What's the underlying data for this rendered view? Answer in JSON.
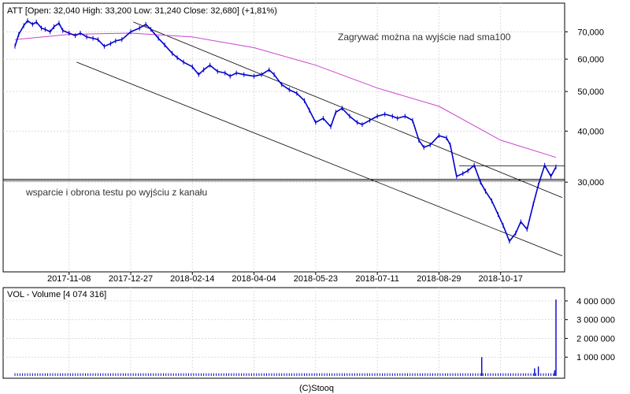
{
  "chart_data": [
    {
      "type": "line",
      "ticker": "ATT",
      "header": {
        "ticker": "ATT",
        "open": "32,040",
        "high": "33,200",
        "low": "31,240",
        "close": "32,680",
        "change": "(+1,81%)"
      },
      "title_text": "ATT [Open: 32,040  High: 33,200  Low: 31,240  Close: 32,680]  (+1,81%)",
      "scale": "log",
      "ylim": [
        19,
        78
      ],
      "yticks": [
        30000,
        40000,
        50000,
        60000,
        70000
      ],
      "ytick_labels": [
        "30,000",
        "40,000",
        "50,000",
        "60,000",
        "70,000"
      ],
      "xtick_labels": [
        "2017-11-08",
        "2017-12-27",
        "2018-02-14",
        "2018-04-04",
        "2018-05-23",
        "2018-07-11",
        "2018-08-29",
        "2018-10-17"
      ],
      "series": [
        {
          "kind": "price",
          "color": "#0000cc",
          "points": [
            [
              "2017-09-26",
              64.5
            ],
            [
              "2017-09-29",
              69.0
            ],
            [
              "2017-10-03",
              72.5
            ],
            [
              "2017-10-06",
              74.5
            ],
            [
              "2017-10-10",
              73.0
            ],
            [
              "2017-10-13",
              74.0
            ],
            [
              "2017-10-17",
              71.5
            ],
            [
              "2017-10-20",
              71.0
            ],
            [
              "2017-10-24",
              70.0
            ],
            [
              "2017-10-27",
              72.0
            ],
            [
              "2017-10-31",
              73.5
            ],
            [
              "2017-11-03",
              70.5
            ],
            [
              "2017-11-08",
              69.5
            ],
            [
              "2017-11-13",
              68.5
            ],
            [
              "2017-11-17",
              69.5
            ],
            [
              "2017-11-22",
              68.0
            ],
            [
              "2017-11-27",
              67.5
            ],
            [
              "2017-12-01",
              67.0
            ],
            [
              "2017-12-06",
              64.5
            ],
            [
              "2017-12-11",
              65.5
            ],
            [
              "2017-12-15",
              66.5
            ],
            [
              "2017-12-20",
              67.0
            ],
            [
              "2017-12-27",
              70.0
            ],
            [
              "2018-01-03",
              71.5
            ],
            [
              "2018-01-08",
              73.0
            ],
            [
              "2018-01-12",
              71.0
            ],
            [
              "2018-01-18",
              67.5
            ],
            [
              "2018-01-23",
              65.0
            ],
            [
              "2018-01-29",
              62.0
            ],
            [
              "2018-02-02",
              60.5
            ],
            [
              "2018-02-07",
              59.0
            ],
            [
              "2018-02-14",
              57.5
            ],
            [
              "2018-02-19",
              55.0
            ],
            [
              "2018-02-23",
              56.5
            ],
            [
              "2018-02-28",
              58.0
            ],
            [
              "2018-03-06",
              56.0
            ],
            [
              "2018-03-12",
              55.5
            ],
            [
              "2018-03-16",
              54.5
            ],
            [
              "2018-03-21",
              55.5
            ],
            [
              "2018-03-27",
              55.0
            ],
            [
              "2018-04-04",
              54.5
            ],
            [
              "2018-04-10",
              55.0
            ],
            [
              "2018-04-16",
              56.5
            ],
            [
              "2018-04-20",
              55.0
            ],
            [
              "2018-04-26",
              52.0
            ],
            [
              "2018-05-02",
              50.5
            ],
            [
              "2018-05-08",
              49.5
            ],
            [
              "2018-05-14",
              47.5
            ],
            [
              "2018-05-18",
              45.0
            ],
            [
              "2018-05-23",
              42.0
            ],
            [
              "2018-05-29",
              43.0
            ],
            [
              "2018-06-04",
              41.0
            ],
            [
              "2018-06-08",
              44.5
            ],
            [
              "2018-06-13",
              45.5
            ],
            [
              "2018-06-19",
              43.5
            ],
            [
              "2018-06-25",
              42.0
            ],
            [
              "2018-06-29",
              41.5
            ],
            [
              "2018-07-05",
              42.5
            ],
            [
              "2018-07-11",
              43.5
            ],
            [
              "2018-07-17",
              44.0
            ],
            [
              "2018-07-23",
              43.5
            ],
            [
              "2018-07-27",
              43.0
            ],
            [
              "2018-08-02",
              43.5
            ],
            [
              "2018-08-08",
              42.5
            ],
            [
              "2018-08-13",
              38.0
            ],
            [
              "2018-08-17",
              36.5
            ],
            [
              "2018-08-22",
              37.0
            ],
            [
              "2018-08-29",
              39.0
            ],
            [
              "2018-09-04",
              38.5
            ],
            [
              "2018-09-07",
              37.0
            ],
            [
              "2018-09-12",
              31.0
            ],
            [
              "2018-09-17",
              31.5
            ],
            [
              "2018-09-21",
              32.0
            ],
            [
              "2018-09-26",
              33.0
            ],
            [
              "2018-10-01",
              30.0
            ],
            [
              "2018-10-05",
              28.5
            ],
            [
              "2018-10-10",
              27.0
            ],
            [
              "2018-10-15",
              25.0
            ],
            [
              "2018-10-19",
              23.5
            ],
            [
              "2018-10-24",
              21.5
            ],
            [
              "2018-10-29",
              22.5
            ],
            [
              "2018-11-02",
              24.0
            ],
            [
              "2018-11-07",
              23.0
            ],
            [
              "2018-11-12",
              26.5
            ],
            [
              "2018-11-16",
              29.5
            ],
            [
              "2018-11-21",
              33.0
            ],
            [
              "2018-11-26",
              31.0
            ],
            [
              "2018-11-30",
              32.7
            ]
          ]
        },
        {
          "kind": "sma100",
          "color": "#cc44cc",
          "points": [
            [
              "2017-09-26",
              67.0
            ],
            [
              "2017-11-08",
              69.0
            ],
            [
              "2017-12-27",
              69.5
            ],
            [
              "2018-02-14",
              68.0
            ],
            [
              "2018-04-04",
              64.0
            ],
            [
              "2018-05-23",
              58.0
            ],
            [
              "2018-07-11",
              51.0
            ],
            [
              "2018-08-29",
              46.0
            ],
            [
              "2018-10-17",
              38.0
            ],
            [
              "2018-11-30",
              34.5
            ]
          ]
        }
      ],
      "annotations": [
        {
          "text": "Zagrywać można na wyjście nad sma100"
        },
        {
          "text": "wsparcie i obrona testu po wyjściu z kanału"
        }
      ],
      "lines": [
        {
          "kind": "channel-upper",
          "color": "#000000",
          "from": [
            "2017-12-29",
            74.0
          ],
          "to": [
            "2018-12-05",
            27.5
          ]
        },
        {
          "kind": "channel-lower",
          "color": "#000000",
          "from": [
            "2017-11-14",
            59.0
          ],
          "to": [
            "2018-12-05",
            19.8
          ]
        },
        {
          "kind": "support",
          "color": "#000000",
          "value": 30.5
        },
        {
          "kind": "support",
          "color": "#000000",
          "value": 30.2
        },
        {
          "kind": "resistance",
          "color": "#000000",
          "from_date": "2018-09-14",
          "value": 32.9
        }
      ]
    },
    {
      "type": "bar",
      "name": "VOL",
      "title_text": "VOL - Volume [4 074 316]",
      "color": "#0000cc",
      "ylim": [
        0,
        4500000
      ],
      "yticks": [
        1000000,
        2000000,
        3000000,
        4000000
      ],
      "ytick_labels": [
        "1 000 000",
        "2 000 000",
        "3 000 000",
        "4 000 000"
      ],
      "spikes": [
        [
          "2018-10-02",
          1000000
        ],
        [
          "2018-11-13",
          400000
        ],
        [
          "2018-11-16",
          500000
        ],
        [
          "2018-11-29",
          300000
        ],
        [
          "2018-11-30",
          4074316
        ]
      ],
      "baseline_volume": 140000
    }
  ],
  "footer": {
    "credit": "(C)Stooq"
  }
}
